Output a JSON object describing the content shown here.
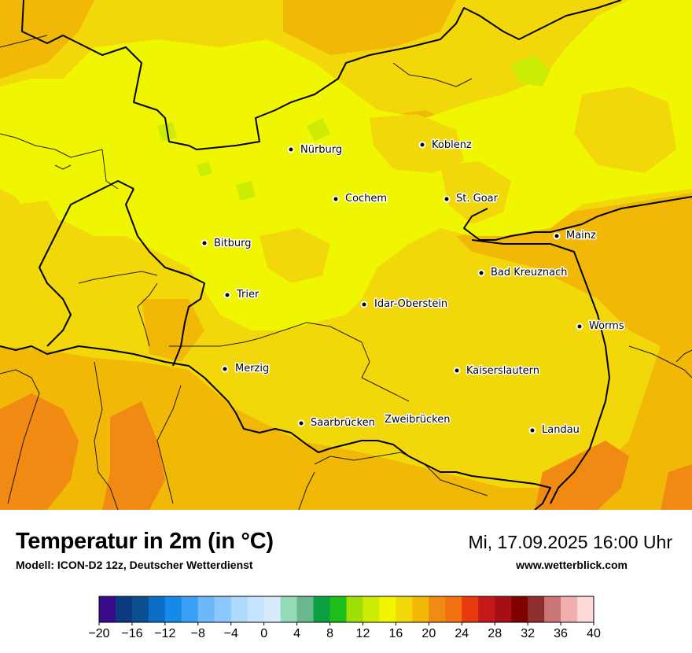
{
  "map": {
    "cities": [
      {
        "name": "Nürburg"
      },
      {
        "name": "Koblenz"
      },
      {
        "name": "Cochem"
      },
      {
        "name": "St. Goar"
      },
      {
        "name": "Bitburg"
      },
      {
        "name": "Mainz"
      },
      {
        "name": "Bad Kreuznach"
      },
      {
        "name": "Trier"
      },
      {
        "name": "Idar-Oberstein"
      },
      {
        "name": "Worms"
      },
      {
        "name": "Merzig"
      },
      {
        "name": "Kaiserslautern"
      },
      {
        "name": "Saarbrücken"
      },
      {
        "name": "Zweibrücken"
      },
      {
        "name": "Landau"
      }
    ]
  },
  "footer": {
    "title": "Temperatur in 2m (in °C)",
    "model": "Modell: ICON-D2 12z, Deutscher Wetterdienst",
    "datetime": "Mi, 17.09.2025 16:00 Uhr",
    "website": "www.wetterblick.com"
  },
  "legend": {
    "ticks": [
      "−20",
      "−16",
      "−12",
      "−8",
      "−4",
      "0",
      "4",
      "8",
      "12",
      "16",
      "20",
      "24",
      "28",
      "32",
      "36",
      "40"
    ],
    "colors": [
      "#3a0a8c",
      "#0b3a80",
      "#0a4f8f",
      "#0a6ec7",
      "#168ae8",
      "#3aa0f7",
      "#6cb8fb",
      "#8cc8fc",
      "#add9fd",
      "#c6e4fd",
      "#d6ecfd",
      "#95dbb7",
      "#69b78c",
      "#0aa240",
      "#1ebd19",
      "#9edf0a",
      "#cdec05",
      "#f0f500",
      "#f2d80a",
      "#f1b808",
      "#f08a12",
      "#f26f12",
      "#e8390c",
      "#c51818",
      "#a80e15",
      "#800000",
      "#8e2e2e",
      "#c97575",
      "#f2adad",
      "#fcd9d9"
    ]
  }
}
